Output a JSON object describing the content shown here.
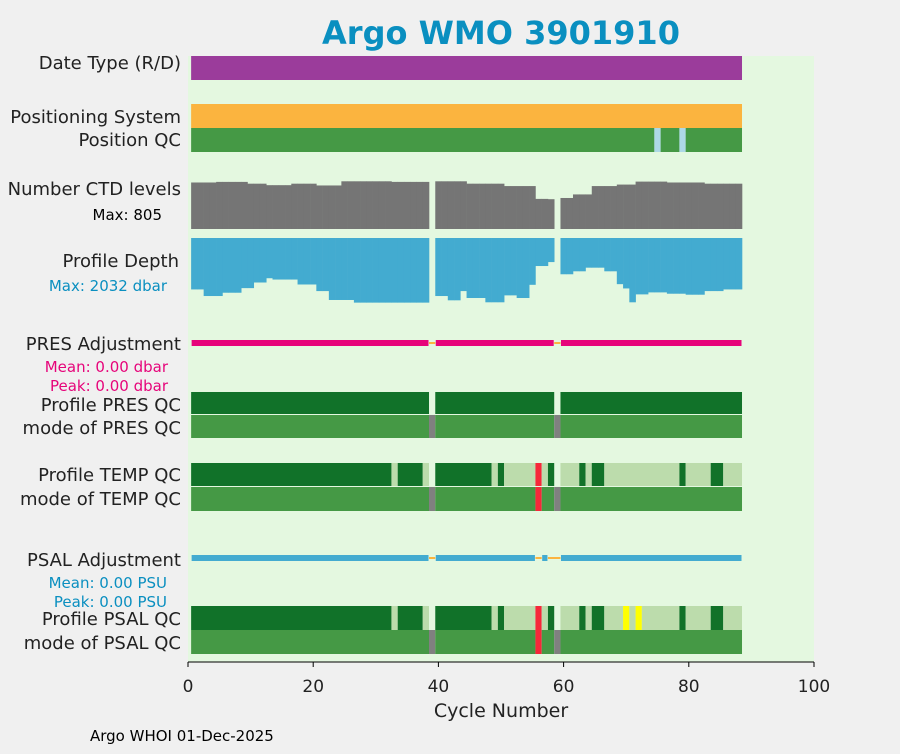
{
  "title": "Argo WMO 3901910",
  "footer": "Argo WHOI 01-Dec-2025",
  "colors": {
    "title": "#0a8fc0",
    "plot_bg": "#e4f8e0",
    "figure_bg": "#f0f0f0",
    "date_type": "#9b3c9b",
    "positioning": "#fbb43f",
    "qc_good_dark": "#117229",
    "qc_good": "#459945",
    "qc_light": "#bcdcac",
    "qc_missing": "#add8e6",
    "qc_gray": "#808080",
    "qc_bad": "#f6283a",
    "qc_flag_yellow": "#ffff00",
    "ctd_levels": "#757575",
    "profile_depth": "#43abd0",
    "pres_adjustment": "#e6047a",
    "psal_adjustment": "#43abd0",
    "adjust_gap": "#fbb43f"
  },
  "rows": {
    "date_type": "Date Type (R/D)",
    "positioning_system": "Positioning System",
    "position_qc": "Position QC",
    "ctd_levels": "Number CTD levels",
    "ctd_max": "Max: 805",
    "profile_depth": "Profile Depth",
    "depth_max": "Max: 2032 dbar",
    "pres_adjustment": "PRES Adjustment",
    "pres_mean": "Mean: 0.00 dbar",
    "pres_peak": "Peak: 0.00 dbar",
    "profile_pres_qc": "Profile PRES QC",
    "mode_pres_qc": "mode of PRES QC",
    "profile_temp_qc": "Profile TEMP QC",
    "mode_temp_qc": "mode of TEMP QC",
    "psal_adjustment": "PSAL Adjustment",
    "psal_mean": "Mean: 0.00 PSU",
    "psal_peak": "Peak: 0.00 PSU",
    "profile_psal_qc": "Profile PSAL QC",
    "mode_psal_qc": "mode of PSAL QC"
  },
  "chart_data": {
    "type": "bar",
    "xlabel": "Cycle Number",
    "xlim": [
      0,
      100
    ],
    "x_ticks": [
      0,
      20,
      40,
      60,
      80,
      100
    ],
    "cycles": {
      "first": 1,
      "last": 88,
      "missing": [
        39,
        59
      ]
    },
    "date_type": [
      {
        "from": 1,
        "to": 88,
        "color": "date_type"
      }
    ],
    "positioning_system": [
      {
        "from": 1,
        "to": 88,
        "color": "positioning"
      }
    ],
    "position_qc": [
      {
        "from": 1,
        "to": 74,
        "color": "qc_good"
      },
      {
        "from": 75,
        "to": 75,
        "color": "qc_missing"
      },
      {
        "from": 76,
        "to": 78,
        "color": "qc_good"
      },
      {
        "from": 79,
        "to": 79,
        "color": "qc_missing"
      },
      {
        "from": 80,
        "to": 88,
        "color": "qc_good"
      }
    ],
    "ctd_levels_max": 805,
    "ctd_levels": [
      {
        "from": 1,
        "to": 4,
        "value": 780
      },
      {
        "from": 5,
        "to": 9,
        "value": 790
      },
      {
        "from": 10,
        "to": 12,
        "value": 760
      },
      {
        "from": 13,
        "to": 16,
        "value": 735
      },
      {
        "from": 17,
        "to": 20,
        "value": 760
      },
      {
        "from": 21,
        "to": 24,
        "value": 730
      },
      {
        "from": 25,
        "to": 32,
        "value": 800
      },
      {
        "from": 33,
        "to": 38,
        "value": 790
      },
      {
        "from": 40,
        "to": 44,
        "value": 800
      },
      {
        "from": 45,
        "to": 50,
        "value": 760
      },
      {
        "from": 51,
        "to": 55,
        "value": 720
      },
      {
        "from": 56,
        "to": 57,
        "value": 505
      },
      {
        "from": 58,
        "to": 58,
        "value": 500
      },
      {
        "from": 60,
        "to": 61,
        "value": 520
      },
      {
        "from": 62,
        "to": 64,
        "value": 580
      },
      {
        "from": 65,
        "to": 68,
        "value": 720
      },
      {
        "from": 69,
        "to": 71,
        "value": 745
      },
      {
        "from": 72,
        "to": 76,
        "value": 795
      },
      {
        "from": 77,
        "to": 82,
        "value": 780
      },
      {
        "from": 83,
        "to": 88,
        "value": 760
      }
    ],
    "profile_depth_max": 2032,
    "profile_depth": [
      {
        "from": 1,
        "to": 2,
        "value": 1560
      },
      {
        "from": 3,
        "to": 5,
        "value": 1760
      },
      {
        "from": 6,
        "to": 8,
        "value": 1660
      },
      {
        "from": 9,
        "to": 10,
        "value": 1520
      },
      {
        "from": 11,
        "to": 12,
        "value": 1350
      },
      {
        "from": 13,
        "to": 13,
        "value": 1220
      },
      {
        "from": 14,
        "to": 17,
        "value": 1260
      },
      {
        "from": 18,
        "to": 20,
        "value": 1410
      },
      {
        "from": 21,
        "to": 22,
        "value": 1610
      },
      {
        "from": 23,
        "to": 26,
        "value": 1880
      },
      {
        "from": 27,
        "to": 33,
        "value": 1960
      },
      {
        "from": 34,
        "to": 38,
        "value": 1960
      },
      {
        "from": 40,
        "to": 41,
        "value": 1760
      },
      {
        "from": 42,
        "to": 43,
        "value": 1890
      },
      {
        "from": 44,
        "to": 44,
        "value": 1610
      },
      {
        "from": 45,
        "to": 47,
        "value": 1820
      },
      {
        "from": 48,
        "to": 50,
        "value": 1950
      },
      {
        "from": 51,
        "to": 52,
        "value": 1740
      },
      {
        "from": 53,
        "to": 54,
        "value": 1820
      },
      {
        "from": 55,
        "to": 55,
        "value": 1420
      },
      {
        "from": 56,
        "to": 57,
        "value": 850
      },
      {
        "from": 58,
        "to": 58,
        "value": 730
      },
      {
        "from": 60,
        "to": 61,
        "value": 1100
      },
      {
        "from": 62,
        "to": 63,
        "value": 1010
      },
      {
        "from": 64,
        "to": 66,
        "value": 900
      },
      {
        "from": 67,
        "to": 68,
        "value": 1010
      },
      {
        "from": 69,
        "to": 69,
        "value": 1400
      },
      {
        "from": 70,
        "to": 70,
        "value": 1530
      },
      {
        "from": 71,
        "to": 71,
        "value": 1950
      },
      {
        "from": 72,
        "to": 73,
        "value": 1710
      },
      {
        "from": 74,
        "to": 76,
        "value": 1650
      },
      {
        "from": 77,
        "to": 79,
        "value": 1690
      },
      {
        "from": 80,
        "to": 82,
        "value": 1720
      },
      {
        "from": 83,
        "to": 85,
        "value": 1610
      },
      {
        "from": 86,
        "to": 88,
        "value": 1560
      }
    ],
    "pres_adjustment": [
      {
        "from": 1,
        "to": 38,
        "color": "pres_adjustment"
      },
      {
        "from": 39,
        "to": 39,
        "color": "adjust_gap"
      },
      {
        "from": 40,
        "to": 58,
        "color": "pres_adjustment"
      },
      {
        "from": 59,
        "to": 59,
        "color": "adjust_gap"
      },
      {
        "from": 60,
        "to": 88,
        "color": "pres_adjustment"
      }
    ],
    "profile_pres_qc": [
      {
        "from": 1,
        "to": 38,
        "color": "qc_good_dark"
      },
      {
        "from": 40,
        "to": 58,
        "color": "qc_good_dark"
      },
      {
        "from": 60,
        "to": 88,
        "color": "qc_good_dark"
      }
    ],
    "mode_pres_qc": [
      {
        "from": 1,
        "to": 38,
        "color": "qc_good"
      },
      {
        "from": 39,
        "to": 39,
        "color": "qc_gray"
      },
      {
        "from": 40,
        "to": 58,
        "color": "qc_good"
      },
      {
        "from": 59,
        "to": 59,
        "color": "qc_gray"
      },
      {
        "from": 60,
        "to": 88,
        "color": "qc_good"
      }
    ],
    "profile_temp_qc": [
      {
        "from": 1,
        "to": 32,
        "color": "qc_good_dark"
      },
      {
        "from": 33,
        "to": 33,
        "color": "qc_light"
      },
      {
        "from": 34,
        "to": 37,
        "color": "qc_good_dark"
      },
      {
        "from": 38,
        "to": 38,
        "color": "qc_light"
      },
      {
        "from": 40,
        "to": 48,
        "color": "qc_good_dark"
      },
      {
        "from": 49,
        "to": 49,
        "color": "qc_light"
      },
      {
        "from": 50,
        "to": 50,
        "color": "qc_good_dark"
      },
      {
        "from": 51,
        "to": 55,
        "color": "qc_light"
      },
      {
        "from": 56,
        "to": 56,
        "color": "qc_bad"
      },
      {
        "from": 57,
        "to": 57,
        "color": "qc_light"
      },
      {
        "from": 58,
        "to": 58,
        "color": "qc_good_dark"
      },
      {
        "from": 60,
        "to": 62,
        "color": "qc_light"
      },
      {
        "from": 63,
        "to": 63,
        "color": "qc_good_dark"
      },
      {
        "from": 64,
        "to": 64,
        "color": "qc_light"
      },
      {
        "from": 65,
        "to": 66,
        "color": "qc_good_dark"
      },
      {
        "from": 67,
        "to": 78,
        "color": "qc_light"
      },
      {
        "from": 79,
        "to": 79,
        "color": "qc_good_dark"
      },
      {
        "from": 80,
        "to": 83,
        "color": "qc_light"
      },
      {
        "from": 84,
        "to": 85,
        "color": "qc_good_dark"
      },
      {
        "from": 86,
        "to": 88,
        "color": "qc_light"
      }
    ],
    "mode_temp_qc": [
      {
        "from": 1,
        "to": 38,
        "color": "qc_good"
      },
      {
        "from": 39,
        "to": 39,
        "color": "qc_gray"
      },
      {
        "from": 40,
        "to": 55,
        "color": "qc_good"
      },
      {
        "from": 56,
        "to": 56,
        "color": "qc_bad"
      },
      {
        "from": 57,
        "to": 58,
        "color": "qc_good"
      },
      {
        "from": 59,
        "to": 59,
        "color": "qc_gray"
      },
      {
        "from": 60,
        "to": 88,
        "color": "qc_good"
      }
    ],
    "psal_adjustment": [
      {
        "from": 1,
        "to": 38,
        "color": "psal_adjustment"
      },
      {
        "from": 39,
        "to": 39,
        "color": "adjust_gap"
      },
      {
        "from": 40,
        "to": 55,
        "color": "psal_adjustment"
      },
      {
        "from": 56,
        "to": 56,
        "color": "adjust_gap"
      },
      {
        "from": 57,
        "to": 57,
        "color": "psal_adjustment"
      },
      {
        "from": 58,
        "to": 59,
        "color": "adjust_gap"
      },
      {
        "from": 60,
        "to": 88,
        "color": "psal_adjustment"
      }
    ],
    "profile_psal_qc": [
      {
        "from": 1,
        "to": 32,
        "color": "qc_good_dark"
      },
      {
        "from": 33,
        "to": 33,
        "color": "qc_light"
      },
      {
        "from": 34,
        "to": 37,
        "color": "qc_good_dark"
      },
      {
        "from": 38,
        "to": 38,
        "color": "qc_light"
      },
      {
        "from": 40,
        "to": 48,
        "color": "qc_good_dark"
      },
      {
        "from": 49,
        "to": 49,
        "color": "qc_light"
      },
      {
        "from": 50,
        "to": 50,
        "color": "qc_good_dark"
      },
      {
        "from": 51,
        "to": 55,
        "color": "qc_light"
      },
      {
        "from": 56,
        "to": 56,
        "color": "qc_bad"
      },
      {
        "from": 57,
        "to": 57,
        "color": "qc_light"
      },
      {
        "from": 58,
        "to": 58,
        "color": "qc_good_dark"
      },
      {
        "from": 60,
        "to": 62,
        "color": "qc_light"
      },
      {
        "from": 63,
        "to": 63,
        "color": "qc_good_dark"
      },
      {
        "from": 64,
        "to": 64,
        "color": "qc_light"
      },
      {
        "from": 65,
        "to": 66,
        "color": "qc_good_dark"
      },
      {
        "from": 67,
        "to": 69,
        "color": "qc_light"
      },
      {
        "from": 70,
        "to": 70,
        "color": "qc_flag_yellow"
      },
      {
        "from": 71,
        "to": 71,
        "color": "qc_light"
      },
      {
        "from": 72,
        "to": 72,
        "color": "qc_flag_yellow"
      },
      {
        "from": 73,
        "to": 78,
        "color": "qc_light"
      },
      {
        "from": 79,
        "to": 79,
        "color": "qc_good_dark"
      },
      {
        "from": 80,
        "to": 83,
        "color": "qc_light"
      },
      {
        "from": 84,
        "to": 85,
        "color": "qc_good_dark"
      },
      {
        "from": 86,
        "to": 88,
        "color": "qc_light"
      }
    ],
    "mode_psal_qc": [
      {
        "from": 1,
        "to": 38,
        "color": "qc_good"
      },
      {
        "from": 39,
        "to": 39,
        "color": "qc_gray"
      },
      {
        "from": 40,
        "to": 55,
        "color": "qc_good"
      },
      {
        "from": 56,
        "to": 56,
        "color": "qc_bad"
      },
      {
        "from": 57,
        "to": 58,
        "color": "qc_good"
      },
      {
        "from": 59,
        "to": 59,
        "color": "qc_gray"
      },
      {
        "from": 60,
        "to": 88,
        "color": "qc_good"
      }
    ]
  }
}
